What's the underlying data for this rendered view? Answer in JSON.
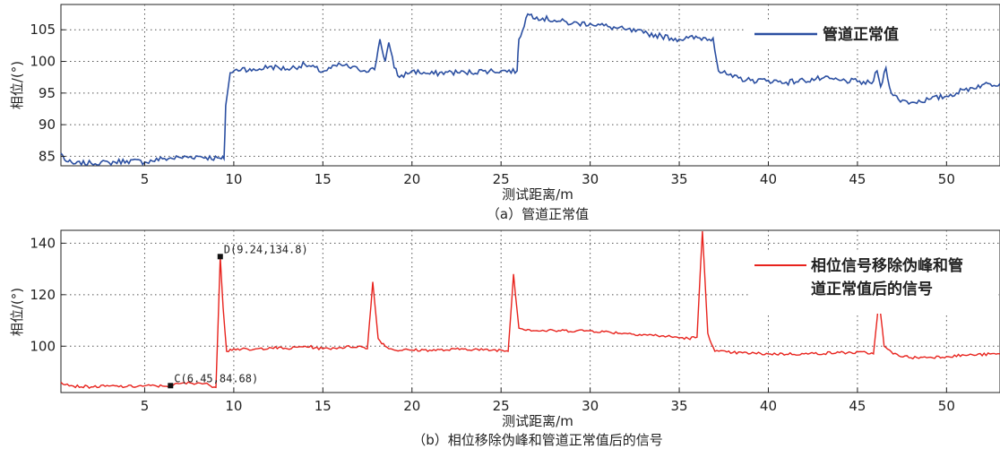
{
  "chart_data": [
    {
      "type": "line",
      "caption": "（a）管道正常值",
      "xlabel": "测试距离/m",
      "ylabel": "相位/(°)",
      "xlim": [
        0.3,
        53
      ],
      "ylim": [
        83.5,
        109
      ],
      "xticks": [
        5,
        10,
        15,
        20,
        25,
        30,
        35,
        40,
        45,
        50
      ],
      "yticks": [
        85,
        90,
        95,
        100,
        105
      ],
      "grid": true,
      "legend_position": "top-right",
      "series": [
        {
          "name": "管道正常值",
          "color": "#2b4fa1",
          "x": [
            0.3,
            0.6,
            1,
            2,
            3,
            4,
            5,
            6,
            7,
            8,
            9.3,
            9.45,
            9.55,
            9.8,
            10.5,
            11,
            12,
            13,
            14,
            15,
            16,
            17,
            17.9,
            18.2,
            18.5,
            18.7,
            19,
            19.3,
            20,
            21,
            22,
            23,
            24,
            25,
            25.9,
            26.0,
            26.5,
            27,
            28,
            29,
            30,
            31,
            32,
            33,
            34,
            35,
            35.5,
            36.9,
            37.2,
            38,
            39,
            40,
            41,
            42,
            43,
            44,
            45,
            45.8,
            46.1,
            46.3,
            46.6,
            46.9,
            47.3,
            48,
            49,
            50,
            51,
            52,
            53
          ],
          "values": [
            85.5,
            84.2,
            83.8,
            83.9,
            84,
            84.3,
            84.1,
            84.6,
            84.8,
            85,
            84.6,
            84.6,
            93,
            98.2,
            99,
            98.5,
            99.2,
            98.8,
            99.5,
            98.4,
            99.5,
            98.7,
            98.7,
            103.5,
            100,
            103,
            99,
            97.5,
            98.5,
            98,
            98.3,
            98.2,
            98.5,
            98.5,
            98.5,
            103.5,
            107.5,
            107,
            106.5,
            106,
            106,
            105.5,
            105,
            104.5,
            104,
            103.5,
            103.7,
            103.7,
            98.5,
            97.5,
            97,
            97,
            96.7,
            97,
            97.3,
            97,
            96.8,
            96.5,
            98.5,
            96,
            99,
            95,
            94,
            93.5,
            94,
            94.5,
            95.5,
            96.3,
            96.5
          ]
        }
      ]
    },
    {
      "type": "line",
      "caption": "（b）相位移除伪峰和管道正常值后的信号",
      "xlabel": "测试距离/m",
      "ylabel": "相位/(°)",
      "xlim": [
        0.3,
        53
      ],
      "ylim": [
        82,
        145
      ],
      "xticks": [
        5,
        10,
        15,
        20,
        25,
        30,
        35,
        40,
        45,
        50
      ],
      "yticks": [
        100,
        120,
        140
      ],
      "grid": true,
      "legend_position": "top-right",
      "series": [
        {
          "name": "相位信号移除伪峰和管道正常值后的信号",
          "color": "#e8231d",
          "x": [
            0.3,
            1,
            2,
            3,
            4,
            5,
            6,
            6.45,
            7,
            8,
            8.6,
            9.0,
            9.24,
            9.4,
            9.6,
            10,
            11,
            12,
            13,
            14,
            15,
            16,
            17,
            17.5,
            17.8,
            18.1,
            18.5,
            19,
            20,
            21,
            22,
            23,
            24,
            25,
            25.4,
            25.7,
            26.0,
            26.5,
            27,
            28,
            30,
            32,
            34,
            35.5,
            36.0,
            36.3,
            36.6,
            37,
            38,
            40,
            42,
            44,
            45.5,
            45.9,
            46.2,
            46.5,
            47,
            48,
            50,
            51,
            53
          ],
          "values": [
            86,
            84.5,
            84.2,
            84.5,
            84.3,
            84.6,
            84.5,
            84.68,
            85.5,
            85.8,
            85,
            84,
            134.8,
            115,
            98,
            99,
            98.5,
            99.5,
            99,
            100,
            99,
            99.5,
            100,
            99,
            125,
            103,
            100,
            98.5,
            98.5,
            98.5,
            98.5,
            99,
            98.5,
            98.5,
            98,
            128,
            107,
            106.5,
            106,
            106,
            106,
            105,
            104,
            103,
            103.5,
            145,
            105,
            98,
            97.5,
            97,
            97,
            97.5,
            97.5,
            97,
            118,
            100,
            97,
            95.5,
            96,
            96.5,
            97
          ]
        }
      ],
      "annotations": [
        {
          "label": "D(9.24,134.8)",
          "x": 9.24,
          "y": 134.8
        },
        {
          "label": "C(6.45,84.68)",
          "x": 6.45,
          "y": 84.68
        }
      ]
    }
  ]
}
